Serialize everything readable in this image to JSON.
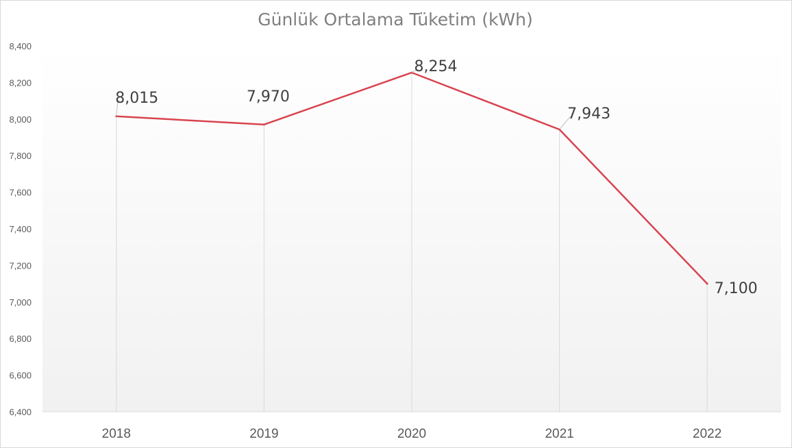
{
  "chart_data": {
    "type": "line",
    "title": "Günlük Ortalama Tüketim (kWh)",
    "xlabel": "",
    "ylabel": "",
    "categories": [
      "2018",
      "2019",
      "2020",
      "2021",
      "2022"
    ],
    "series": [
      {
        "values": [
          8015,
          7970,
          8254,
          7943,
          7100
        ],
        "color": "#d9434f"
      }
    ],
    "data_labels": [
      "8,015",
      "7,970",
      "8,254",
      "7,943",
      "7,100"
    ],
    "ylim": [
      6400,
      8400
    ],
    "yticks": [
      6400,
      6600,
      6800,
      7000,
      7200,
      7400,
      7600,
      7800,
      8000,
      8200,
      8400
    ],
    "ytick_labels": [
      "6,400",
      "6,600",
      "6,800",
      "7,000",
      "7,200",
      "7,400",
      "7,600",
      "7,800",
      "8,000",
      "8,200",
      "8,400"
    ],
    "grid": false,
    "drop_lines": true,
    "legend": "none",
    "background": "gradient-white-to-light-gray"
  }
}
